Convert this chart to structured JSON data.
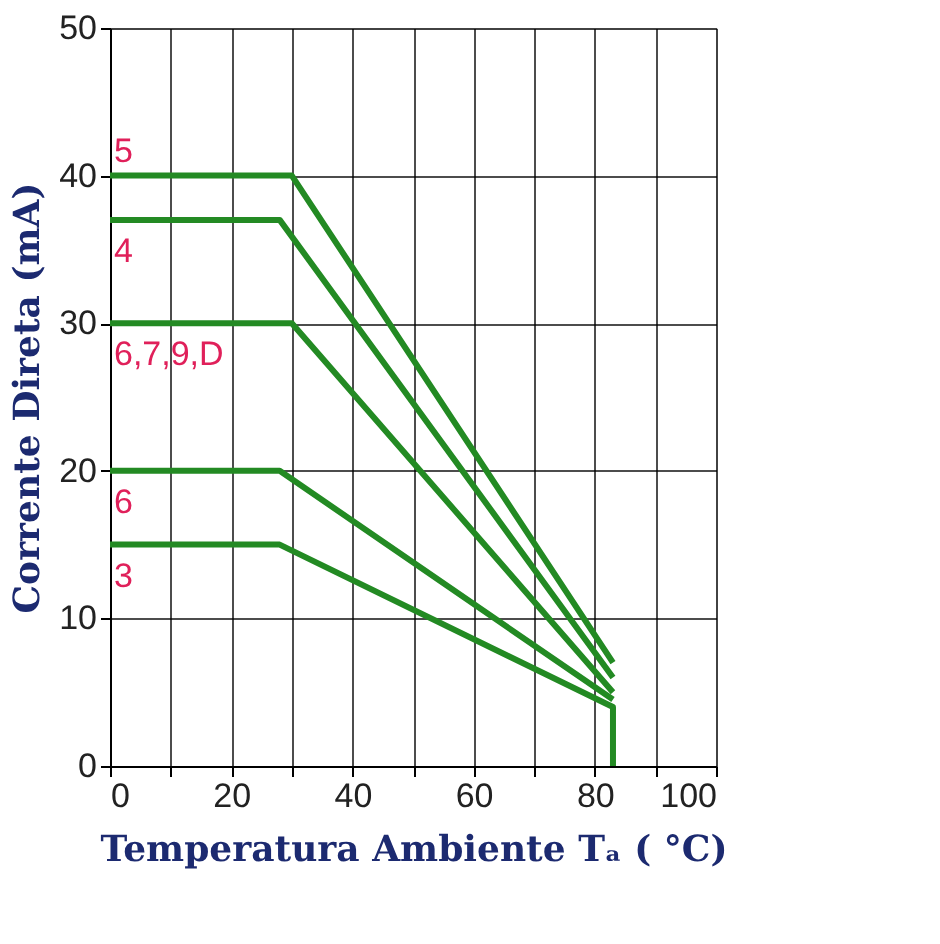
{
  "chart_data": {
    "type": "line",
    "xlabel": "Temperatura Ambiente Tₐ ( °C)",
    "ylabel": "Corrente Direta (mA)",
    "xlim": [
      0,
      100
    ],
    "ylim": [
      0,
      50
    ],
    "xticks": [
      0,
      {
        "value": 10,
        "label": null
      },
      20,
      {
        "value": 30,
        "label": null
      },
      40,
      {
        "value": 50,
        "label": null
      },
      60,
      {
        "value": 70,
        "label": null
      },
      80,
      {
        "value": 90,
        "label": null
      },
      100
    ],
    "yticks": [
      0,
      10,
      20,
      30,
      40,
      50
    ],
    "grid": true,
    "marker": "none",
    "line_style": "solid",
    "series": [
      {
        "name": "5",
        "color": "#238a23",
        "x": [
          0,
          30,
          83
        ],
        "values": [
          40,
          40,
          7
        ]
      },
      {
        "name": "4",
        "color": "#238a23",
        "x": [
          0,
          28,
          83
        ],
        "values": [
          37,
          37,
          6
        ]
      },
      {
        "name": "6,7,9,D",
        "color": "#238a23",
        "x": [
          0,
          30,
          83
        ],
        "values": [
          30,
          30,
          5
        ]
      },
      {
        "name": "6",
        "color": "#238a23",
        "x": [
          0,
          28,
          83
        ],
        "values": [
          20,
          20,
          4.5
        ]
      },
      {
        "name": "3",
        "color": "#238a23",
        "x": [
          0,
          28,
          83,
          83
        ],
        "values": [
          15,
          15,
          4,
          0
        ]
      }
    ]
  }
}
